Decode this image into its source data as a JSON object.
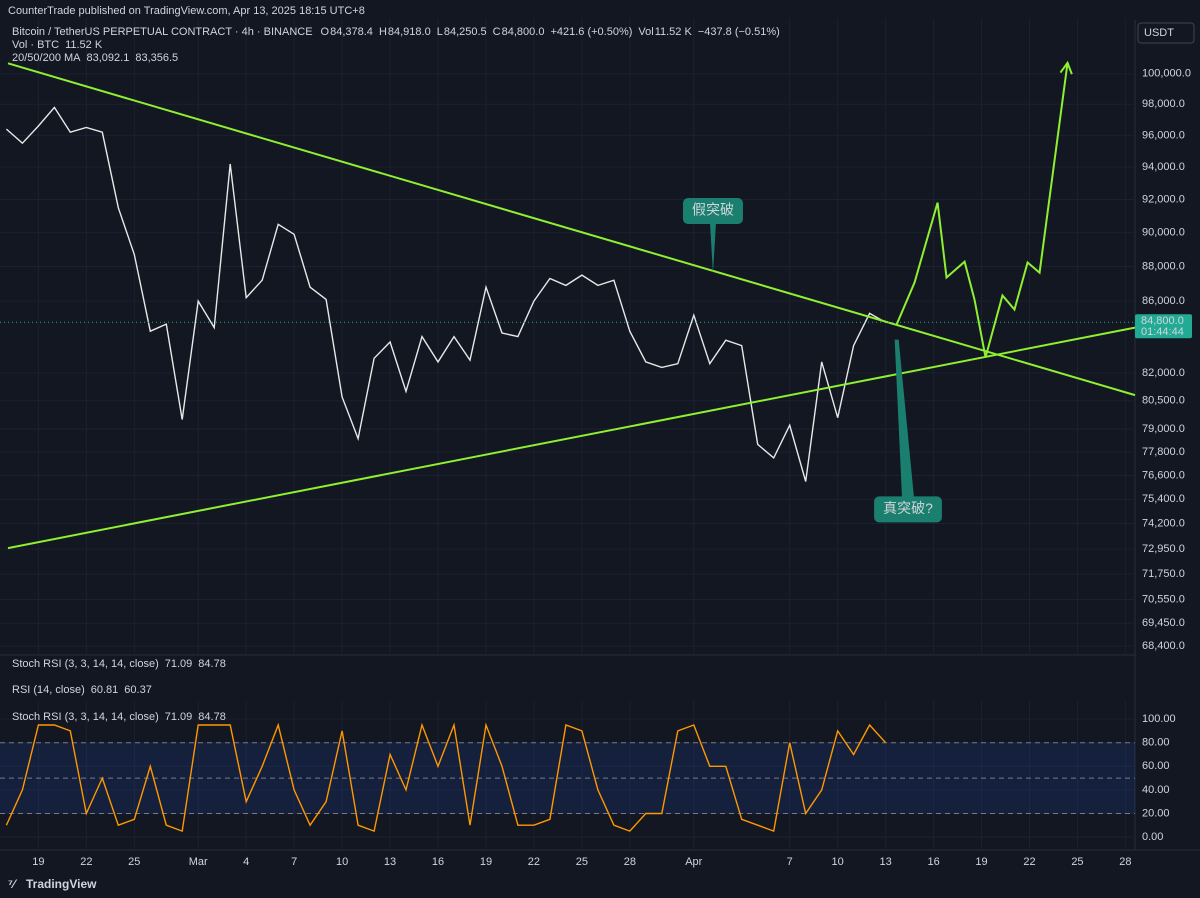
{
  "header": {
    "publisher": "CounterTrade published on TradingView.com, Apr 13, 2025 18:15 UTC+8"
  },
  "footer": {
    "brand": "TradingView"
  },
  "collapsed_panes": [
    {
      "name": "Stoch RSI (3, 3, 14, 14, close)",
      "values": [
        "71.09",
        "84.78"
      ],
      "colors": [
        "#2962ff",
        "#ff9800"
      ]
    },
    {
      "name": "RSI (14, close)",
      "values": [
        "60.81",
        "60.37"
      ],
      "colors": [
        "#9575cd",
        "#f5d33b"
      ]
    }
  ],
  "chart_data": [
    {
      "type": "line",
      "title": "Bitcoin / TetherUS PERPETUAL CONTRACT · 4h · BINANCE",
      "ohlc": [
        {
          "label": "O",
          "value": "84,378.4"
        },
        {
          "label": "H",
          "value": "84,918.0"
        },
        {
          "label": "L",
          "value": "84,250.5"
        },
        {
          "label": "C",
          "value": "84,800.0"
        }
      ],
      "change": "+421.6 (+0.50%)",
      "vol_label": "Vol",
      "vol_value": "11.52 K",
      "vol_change": "−437.8 (−0.51%)",
      "volume_legend": {
        "name": "Vol · BTC",
        "value": "11.52 K"
      },
      "ma_legend": {
        "name": "20/50/200 MA",
        "values": [
          "83,092.1",
          "83,356.5"
        ],
        "colors": [
          "#f23645",
          "#22ab94"
        ]
      },
      "currency": "USDT",
      "last_price": {
        "value": 84800,
        "label": "84,800.0",
        "countdown": "01:44:44"
      },
      "log": true,
      "color": "#e8e8e8",
      "x": [
        48,
        49,
        50,
        51,
        52,
        53,
        54,
        55,
        56,
        57,
        58,
        59,
        60,
        61,
        62,
        63,
        64,
        65,
        66,
        67,
        68,
        69,
        70,
        71,
        72,
        73,
        74,
        75,
        76,
        77,
        78,
        79,
        80,
        81,
        82,
        83,
        84,
        85,
        86,
        87,
        88,
        89,
        90,
        91,
        92,
        93,
        94,
        95,
        96,
        97,
        98,
        99,
        100,
        101,
        102,
        103
      ],
      "values": [
        96400,
        95500,
        96600,
        97800,
        96200,
        96500,
        96200,
        91500,
        88700,
        84300,
        84700,
        79500,
        86000,
        84500,
        94200,
        86200,
        87200,
        90500,
        89900,
        86800,
        86100,
        80700,
        78500,
        82800,
        83700,
        81000,
        84000,
        82600,
        84000,
        82700,
        86800,
        84200,
        84000,
        86000,
        87300,
        86900,
        87500,
        86900,
        87200,
        84300,
        82600,
        82300,
        82500,
        85200,
        82500,
        83800,
        83500,
        78200,
        77500,
        79200,
        76300,
        82600,
        79600,
        83500,
        85300,
        84800
      ],
      "xlim": [
        48.1,
        118.6
      ],
      "xticks": [
        {
          "value": 50,
          "label": "19"
        },
        {
          "value": 53,
          "label": "22"
        },
        {
          "value": 56,
          "label": "25"
        },
        {
          "value": 60,
          "label": "Mar"
        },
        {
          "value": 63,
          "label": "4"
        },
        {
          "value": 66,
          "label": "7"
        },
        {
          "value": 69,
          "label": "10"
        },
        {
          "value": 72,
          "label": "13"
        },
        {
          "value": 75,
          "label": "16"
        },
        {
          "value": 78,
          "label": "19"
        },
        {
          "value": 81,
          "label": "22"
        },
        {
          "value": 84,
          "label": "25"
        },
        {
          "value": 87,
          "label": "28"
        },
        {
          "value": 91,
          "label": "Apr"
        },
        {
          "value": 97,
          "label": "7"
        },
        {
          "value": 100,
          "label": "10"
        },
        {
          "value": 103,
          "label": "13"
        },
        {
          "value": 106,
          "label": "16"
        },
        {
          "value": 109,
          "label": "19"
        },
        {
          "value": 112,
          "label": "22"
        },
        {
          "value": 115,
          "label": "25"
        },
        {
          "value": 118,
          "label": "28"
        }
      ],
      "ylim": [
        68000,
        103500
      ],
      "yticks": [
        {
          "value": 100000,
          "label": "100,000.0"
        },
        {
          "value": 98000,
          "label": "98,000.0"
        },
        {
          "value": 96000,
          "label": "96,000.0"
        },
        {
          "value": 94000,
          "label": "94,000.0"
        },
        {
          "value": 92000,
          "label": "92,000.0"
        },
        {
          "value": 90000,
          "label": "90,000.0"
        },
        {
          "value": 88000,
          "label": "88,000.0"
        },
        {
          "value": 86000,
          "label": "86,000.0"
        },
        {
          "value": 82000,
          "label": "82,000.0"
        },
        {
          "value": 80500,
          "label": "80,500.0"
        },
        {
          "value": 79000,
          "label": "79,000.0"
        },
        {
          "value": 77800,
          "label": "77,800.0"
        },
        {
          "value": 76600,
          "label": "76,600.0"
        },
        {
          "value": 75400,
          "label": "75,400.0"
        },
        {
          "value": 74200,
          "label": "74,200.0"
        },
        {
          "value": 72950,
          "label": "72,950.0"
        },
        {
          "value": 71750,
          "label": "71,750.0"
        },
        {
          "value": 70550,
          "label": "70,550.0"
        },
        {
          "value": 69450,
          "label": "69,450.0"
        },
        {
          "value": 68400,
          "label": "68,400.0"
        }
      ],
      "trendlines": [
        {
          "x": [
            48.1,
            118.6
          ],
          "values": [
            100700,
            80800
          ],
          "color": "#8ef030"
        },
        {
          "x": [
            48.1,
            118.6
          ],
          "values": [
            73000,
            84500
          ],
          "color": "#8ef030"
        }
      ],
      "projection": {
        "x": [
          103.69,
          104.81,
          106.25,
          106.81,
          107.94,
          108.56,
          109.25,
          110.31,
          111.06,
          111.88,
          112.63,
          114.38
        ],
        "values": [
          84680,
          87070,
          91810,
          87360,
          88280,
          86090,
          82850,
          86320,
          85520,
          88230,
          87640,
          100730
        ],
        "color": "#8ef030"
      },
      "annotations": [
        {
          "text": "假突破",
          "x": 92.2,
          "value": 91300,
          "arrow_to": 87600
        },
        {
          "text": "真突破?",
          "x": 104.4,
          "value": 74900,
          "arrow_from": 83830
        }
      ]
    },
    {
      "type": "line",
      "title": "Stoch RSI (3, 3, 14, 14, close)",
      "legend_values": [
        "71.09",
        "84.78"
      ],
      "legend_colors": [
        "#2962ff",
        "#ff9800"
      ],
      "color": "#ff9800",
      "x": [
        48,
        49,
        50,
        51,
        52,
        53,
        54,
        55,
        56,
        57,
        58,
        59,
        60,
        61,
        62,
        63,
        64,
        65,
        66,
        67,
        68,
        69,
        70,
        71,
        72,
        73,
        74,
        75,
        76,
        77,
        78,
        79,
        80,
        81,
        82,
        83,
        84,
        85,
        86,
        87,
        88,
        89,
        90,
        91,
        92,
        93,
        94,
        95,
        96,
        97,
        98,
        99,
        100,
        101,
        102,
        103
      ],
      "values": [
        10,
        40,
        95,
        95,
        90,
        20,
        50,
        10,
        15,
        60,
        10,
        5,
        95,
        95,
        95,
        30,
        60,
        95,
        40,
        10,
        30,
        90,
        10,
        5,
        70,
        40,
        95,
        60,
        95,
        10,
        95,
        60,
        10,
        10,
        15,
        95,
        90,
        40,
        10,
        5,
        20,
        20,
        90,
        95,
        60,
        60,
        15,
        10,
        5,
        80,
        20,
        40,
        90,
        70,
        95,
        80
      ],
      "xlim": [
        48.1,
        118.6
      ],
      "ylim": [
        -11,
        112
      ],
      "bands": [
        80,
        50,
        20
      ],
      "yticks": [
        {
          "value": 100,
          "label": "100.00"
        },
        {
          "value": 80,
          "label": "80.00"
        },
        {
          "value": 60,
          "label": "60.00"
        },
        {
          "value": 40,
          "label": "40.00"
        },
        {
          "value": 20,
          "label": "20.00"
        },
        {
          "value": 0,
          "label": "0.00"
        }
      ]
    }
  ]
}
